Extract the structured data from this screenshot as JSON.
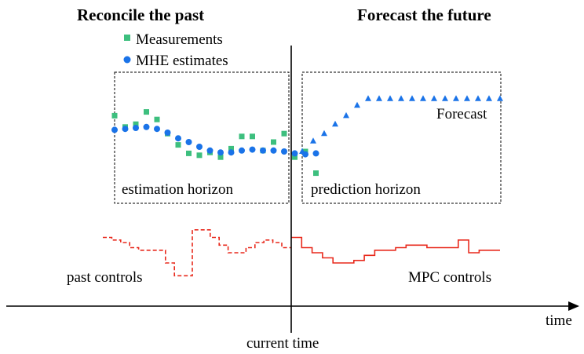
{
  "headings": {
    "past": "Reconcile the past",
    "future": "Forecast the future"
  },
  "legend": {
    "measurements": "Measurements",
    "mhe_estimates": "MHE estimates"
  },
  "labels": {
    "estimation_horizon": "estimation horizon",
    "prediction_horizon": "prediction horizon",
    "forecast": "Forecast",
    "past_controls": "past controls",
    "mpc_controls": "MPC controls",
    "current_time": "current time",
    "time_axis": "time"
  },
  "colors": {
    "measurement": "#3dbf7e",
    "estimate": "#1a73e8",
    "forecast": "#1a73e8",
    "control": "#e8291c",
    "axis": "#000000"
  },
  "series": {
    "measurements": [
      2.9,
      2.3,
      2.45,
      3.1,
      2.7,
      1.95,
      1.35,
      0.9,
      0.8,
      0.95,
      0.7,
      1.15,
      1.8,
      1.8,
      1.05,
      1.5,
      1.95,
      0.7,
      1.0,
      -0.15
    ],
    "mhe_estimates": [
      2.15,
      2.2,
      2.25,
      2.3,
      2.2,
      2.0,
      1.7,
      1.5,
      1.25,
      1.05,
      0.95,
      0.95,
      1.05,
      1.1,
      1.05,
      1.05,
      1.0,
      0.9,
      0.85,
      0.9
    ],
    "forecast": [
      1.0,
      1.55,
      1.95,
      2.45,
      2.9,
      3.45,
      3.8,
      3.8,
      3.8,
      3.8,
      3.8,
      3.8,
      3.8,
      3.8,
      3.8,
      3.8,
      3.8,
      3.8,
      3.8
    ],
    "past_controls": [
      0.3,
      0.25,
      0.2,
      0.1,
      0.05,
      0.05,
      0.05,
      -0.2,
      -0.45,
      -0.45,
      0.45,
      0.45,
      0.3,
      0.15,
      0.0,
      0.0,
      0.1,
      0.2,
      0.25,
      0.2,
      0.1
    ],
    "mpc_controls": [
      0.3,
      0.1,
      0.0,
      -0.1,
      -0.2,
      -0.2,
      -0.15,
      -0.05,
      0.05,
      0.05,
      0.1,
      0.15,
      0.15,
      0.1,
      0.1,
      0.1,
      0.25,
      0.0,
      0.05,
      0.05
    ]
  }
}
